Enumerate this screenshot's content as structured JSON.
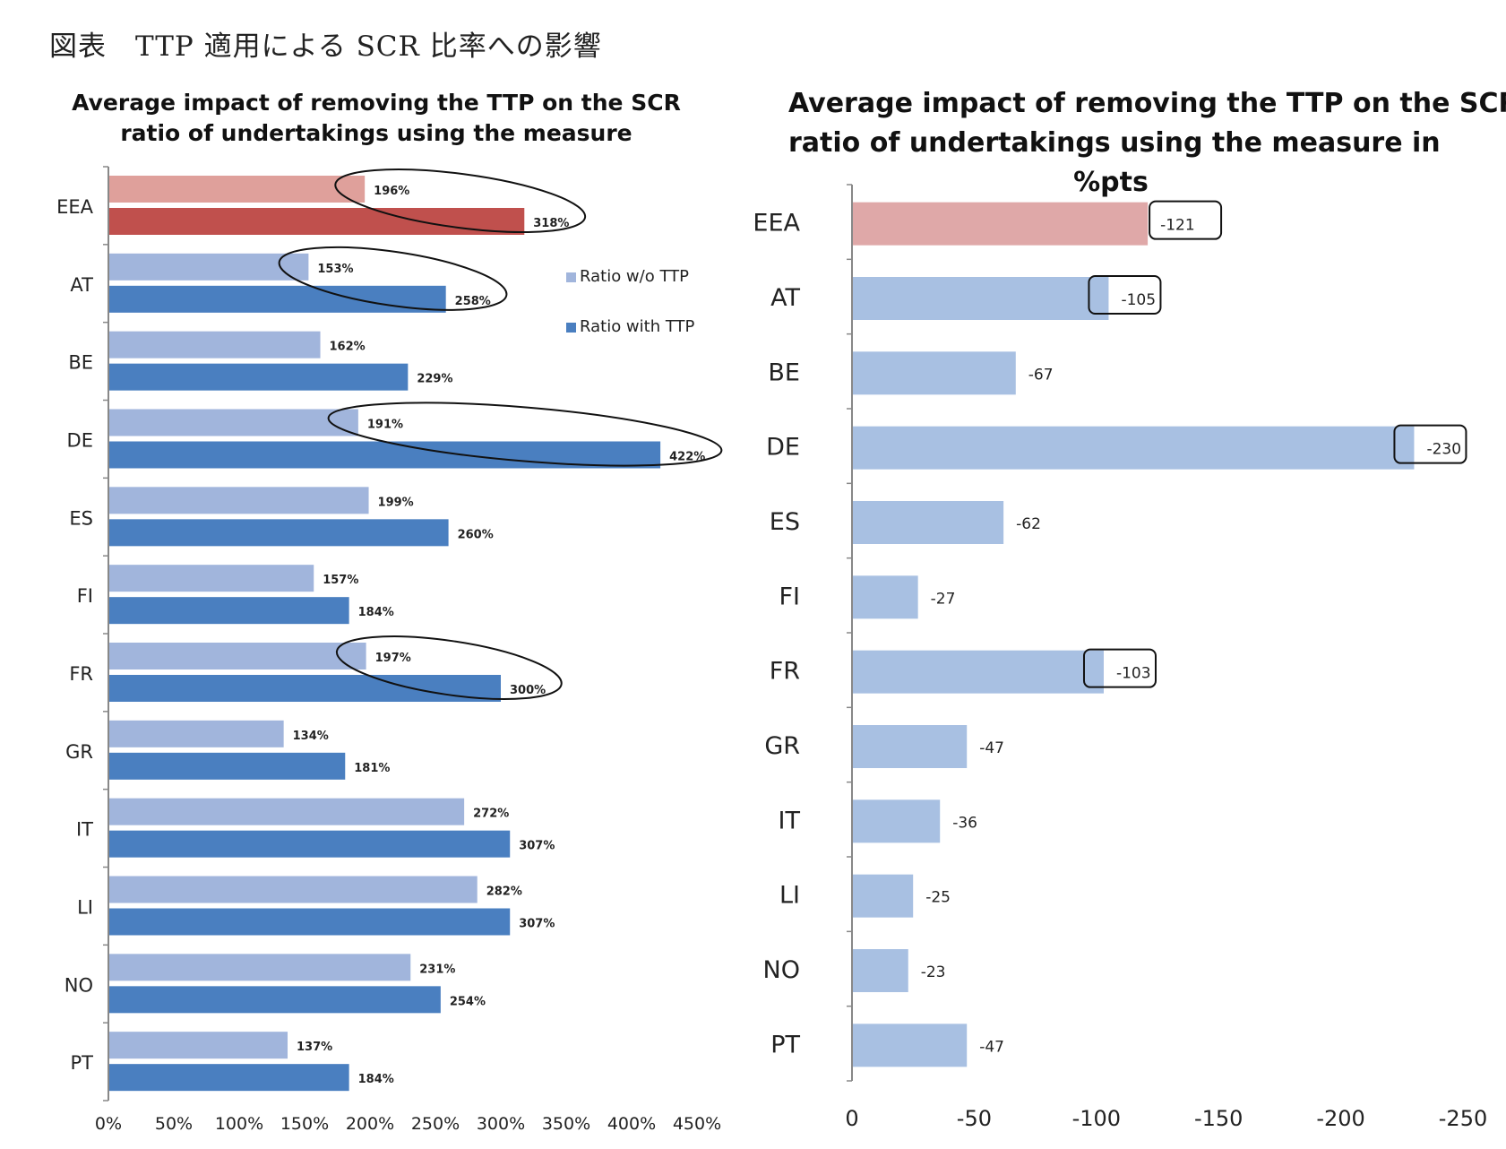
{
  "figure_title": "図表　TTP 適用による SCR 比率への影響",
  "legend": {
    "without": "Ratio w/o TTP",
    "with": "Ratio with TTP"
  },
  "colors": {
    "without": "#a1b5dc",
    "with": "#4a7fc0",
    "eea_without": "#dfa09b",
    "eea_with": "#c0504d",
    "right_bar": "#a8c0e2",
    "right_eea": "#dfa8a8",
    "axis": "#888888"
  },
  "chart_data": [
    {
      "type": "bar",
      "orientation": "horizontal",
      "title": "Average impact of removing the TTP on the SCR ratio of undertakings using the measure",
      "title_lines": [
        "Average impact of removing the TTP on the SCR",
        "ratio of undertakings using the measure"
      ],
      "categories": [
        "EEA",
        "AT",
        "BE",
        "DE",
        "ES",
        "FI",
        "FR",
        "GR",
        "IT",
        "LI",
        "NO",
        "PT"
      ],
      "series": [
        {
          "name": "Ratio w/o TTP",
          "values": [
            196,
            153,
            162,
            191,
            199,
            157,
            197,
            134,
            272,
            282,
            231,
            137
          ],
          "labels": [
            "196%",
            "153%",
            "162%",
            "191%",
            "199%",
            "157%",
            "197%",
            "134%",
            "272%",
            "282%",
            "231%",
            "137%"
          ]
        },
        {
          "name": "Ratio with TTP",
          "values": [
            318,
            258,
            229,
            422,
            260,
            184,
            300,
            181,
            307,
            307,
            254,
            184
          ],
          "labels": [
            "318%",
            "258%",
            "229%",
            "422%",
            "260%",
            "184%",
            "300%",
            "181%",
            "307%",
            "307%",
            "254%",
            "184%"
          ]
        }
      ],
      "xlim": [
        0,
        450
      ],
      "xticks": [
        "0%",
        "50%",
        "100%",
        "150%",
        "200%",
        "250%",
        "300%",
        "350%",
        "400%",
        "450%"
      ],
      "highlighted_categories": [
        "EEA",
        "AT",
        "DE",
        "FR"
      ]
    },
    {
      "type": "bar",
      "orientation": "horizontal",
      "title": "Average impact of removing the TTP on the SCR ratio of undertakings using the measure in %pts",
      "title_lines": [
        "Average impact of removing the TTP on the SCR",
        "ratio of undertakings using the measure in",
        "%pts"
      ],
      "categories": [
        "EEA",
        "AT",
        "BE",
        "DE",
        "ES",
        "FI",
        "FR",
        "GR",
        "IT",
        "LI",
        "NO",
        "PT"
      ],
      "values": [
        -121,
        -105,
        -67,
        -230,
        -62,
        -27,
        -103,
        -47,
        -36,
        -25,
        -23,
        -47
      ],
      "labels": [
        "-121",
        "-105",
        "-67",
        "-230",
        "-62",
        "-27",
        "-103",
        "-47",
        "-36",
        "-25",
        "-23",
        "-47"
      ],
      "xlim": [
        0,
        -250
      ],
      "xticks": [
        "0",
        "-50",
        "-100",
        "-150",
        "-200",
        "-250"
      ],
      "highlighted_categories": [
        "EEA",
        "AT",
        "DE",
        "FR"
      ]
    }
  ]
}
